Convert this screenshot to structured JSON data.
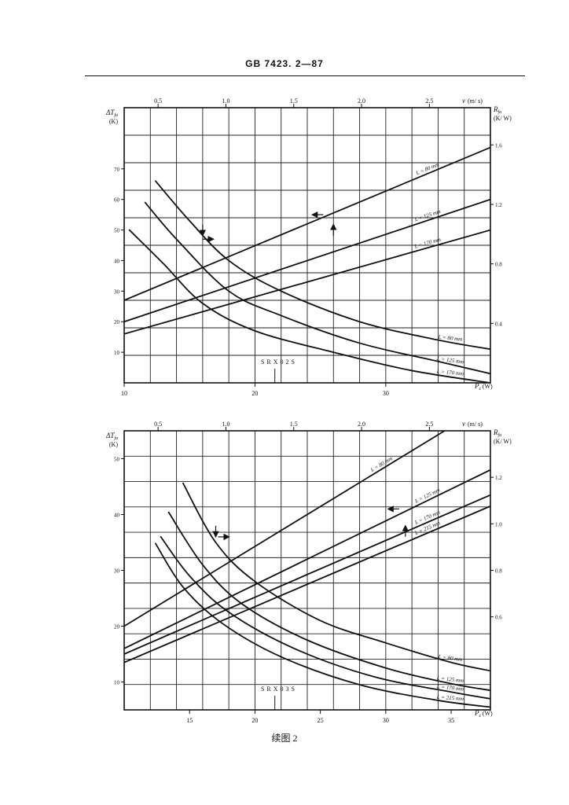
{
  "page": {
    "header": "GB 7423. 2—87",
    "caption": "续图 2"
  },
  "chart_data": [
    {
      "type": "line",
      "model_label": "S R X 0 2 S",
      "x_axis_bottom": {
        "label": "P",
        "label_sub": "z",
        "unit": "(W)",
        "range": [
          10,
          38
        ],
        "ticks": [
          10,
          20,
          30
        ]
      },
      "x_axis_top": {
        "label": "v",
        "unit": "(m/ s)",
        "range": [
          0.25,
          2.95
        ],
        "ticks": [
          0.5,
          1.0,
          1.5,
          2.0,
          2.5
        ]
      },
      "y_axis_left": {
        "label": "ΔT",
        "label_sub": "fa",
        "unit": "(K)",
        "range": [
          0,
          90
        ],
        "ticks": [
          10,
          20,
          30,
          40,
          50,
          60,
          70
        ]
      },
      "y_axis_right": {
        "label": "R",
        "label_sub": "fa",
        "unit": "(K/ W)",
        "range": [
          0.0,
          1.85
        ],
        "ticks": [
          0.4,
          0.8,
          1.2,
          1.6
        ]
      },
      "grid": true,
      "arrows": [
        {
          "direction": "down",
          "at_x": 16.0,
          "y": 50
        },
        {
          "direction": "right",
          "at_x": 16.4,
          "y": 47
        },
        {
          "direction": "left",
          "at_x": 24.8,
          "y": 55
        },
        {
          "direction": "up",
          "at_x": 26.0,
          "y": 50
        }
      ],
      "series": [
        {
          "name": "L = 80 mm",
          "group": "rising",
          "points": [
            [
              10,
              27
            ],
            [
              38,
              77
            ]
          ]
        },
        {
          "name": "L = 125 mm",
          "group": "rising",
          "points": [
            [
              10,
              20
            ],
            [
              38,
              60
            ]
          ]
        },
        {
          "name": "L = 170 mm",
          "group": "rising",
          "points": [
            [
              10,
              16
            ],
            [
              38,
              50
            ]
          ]
        },
        {
          "name": "L = 80 mm",
          "group": "falling",
          "points": [
            [
              12.4,
              66
            ],
            [
              15,
              53
            ],
            [
              18,
              40
            ],
            [
              22,
              30
            ],
            [
              28,
              20
            ],
            [
              34,
              14
            ],
            [
              38,
              11
            ]
          ]
        },
        {
          "name": "L = 125 mm",
          "group": "falling",
          "points": [
            [
              11.6,
              59
            ],
            [
              14,
              47
            ],
            [
              18,
              30
            ],
            [
              22,
              22
            ],
            [
              28,
              13
            ],
            [
              34,
              7
            ],
            [
              38,
              3
            ]
          ]
        },
        {
          "name": "L = 170 mm",
          "group": "falling",
          "points": [
            [
              10.4,
              50
            ],
            [
              13,
              39
            ],
            [
              16,
              26
            ],
            [
              20,
              17
            ],
            [
              26,
              10
            ],
            [
              32,
              4
            ],
            [
              38,
              0
            ]
          ]
        }
      ]
    },
    {
      "type": "line",
      "model_label": "S R X 0 3 S",
      "x_axis_bottom": {
        "label": "P",
        "label_sub": "z",
        "unit": "(W)",
        "range": [
          10,
          38
        ],
        "ticks": [
          15,
          20,
          25,
          30,
          35
        ]
      },
      "x_axis_top": {
        "label": "v",
        "unit": "(m/ s)",
        "range": [
          0.25,
          2.95
        ],
        "ticks": [
          0.5,
          1.0,
          1.5,
          2.0,
          2.5
        ]
      },
      "y_axis_left": {
        "label": "ΔT",
        "label_sub": "fa",
        "unit": "(K)",
        "range": [
          5,
          55
        ],
        "ticks": [
          10,
          20,
          30,
          40,
          50
        ]
      },
      "y_axis_right": {
        "label": "R",
        "label_sub": "fa",
        "unit": "(K/ W)",
        "range": [
          0.2,
          1.4
        ],
        "ticks": [
          0.6,
          0.8,
          1.0,
          1.2
        ]
      },
      "grid": true,
      "arrows": [
        {
          "direction": "down",
          "at_x": 17.0,
          "y": 37
        },
        {
          "direction": "right",
          "at_x": 17.6,
          "y": 36
        },
        {
          "direction": "left",
          "at_x": 30.6,
          "y": 41
        },
        {
          "direction": "up",
          "at_x": 31.5,
          "y": 37
        }
      ],
      "series": [
        {
          "name": "L = 80 mm",
          "group": "rising",
          "points": [
            [
              10,
              20
            ],
            [
              34.5,
              55
            ]
          ]
        },
        {
          "name": "L = 125 mm",
          "group": "rising",
          "points": [
            [
              10,
              16
            ],
            [
              38,
              48
            ]
          ]
        },
        {
          "name": "L = 170 mm",
          "group": "rising",
          "points": [
            [
              10,
              15
            ],
            [
              38,
              43.5
            ]
          ]
        },
        {
          "name": "L = 215 mm",
          "group": "rising",
          "points": [
            [
              10,
              13.5
            ],
            [
              38,
              41.5
            ]
          ]
        },
        {
          "name": "L = 80 mm",
          "group": "falling",
          "points": [
            [
              14.5,
              45.6
            ],
            [
              17,
              35
            ],
            [
              20,
              28
            ],
            [
              25,
              21
            ],
            [
              30,
              17
            ],
            [
              35,
              13.5
            ],
            [
              38,
              12
            ]
          ]
        },
        {
          "name": "L = 125 mm",
          "group": "falling",
          "points": [
            [
              13.4,
              40.4
            ],
            [
              16,
              31
            ],
            [
              19,
              24
            ],
            [
              24,
              17.5
            ],
            [
              30,
              12.5
            ],
            [
              35,
              9.7
            ],
            [
              38,
              8.5
            ]
          ]
        },
        {
          "name": "L = 170 mm",
          "group": "falling",
          "points": [
            [
              12.8,
              36
            ],
            [
              15,
              29
            ],
            [
              18,
              22.5
            ],
            [
              23,
              16
            ],
            [
              29,
              11
            ],
            [
              35,
              8.2
            ],
            [
              38,
              7
            ]
          ]
        },
        {
          "name": "L = 215 mm",
          "group": "falling",
          "points": [
            [
              12.4,
              34.8
            ],
            [
              14.5,
              27
            ],
            [
              17.5,
              20.5
            ],
            [
              22,
              14.5
            ],
            [
              28,
              9.5
            ],
            [
              34,
              6.7
            ],
            [
              38,
              5.5
            ]
          ]
        }
      ]
    }
  ]
}
